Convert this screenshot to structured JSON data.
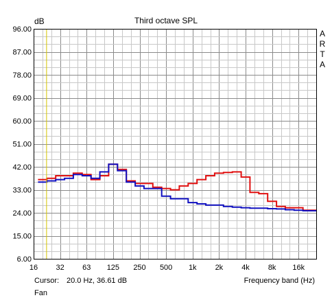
{
  "chart_data": {
    "type": "line",
    "title": "Third octave SPL",
    "ylabel": "dB",
    "xlabel": "Frequency band (Hz)",
    "ylim": [
      6,
      96
    ],
    "y_ticks": [
      "96.00",
      "87.00",
      "78.00",
      "69.00",
      "60.00",
      "51.00",
      "42.00",
      "33.00",
      "24.00",
      "15.00",
      "6.00"
    ],
    "x_ticks": [
      "16",
      "32",
      "63",
      "125",
      "250",
      "500",
      "1k",
      "2k",
      "4k",
      "8k",
      "16k"
    ],
    "bands_hz": [
      16,
      20,
      25,
      31.5,
      40,
      50,
      63,
      80,
      100,
      125,
      160,
      200,
      250,
      315,
      400,
      500,
      630,
      800,
      1000,
      1250,
      1600,
      2000,
      2500,
      3150,
      4000,
      5000,
      6300,
      8000,
      10000,
      12500,
      16000,
      20000
    ],
    "grid": true,
    "series": [
      {
        "color": "#e01010",
        "values": [
          37.0,
          37.5,
          38.5,
          38.5,
          39.5,
          39.0,
          37.0,
          38.5,
          43.0,
          41.0,
          36.5,
          35.5,
          35.5,
          34.0,
          33.5,
          33.0,
          34.5,
          35.5,
          37.0,
          38.5,
          39.5,
          39.8,
          40.0,
          38.0,
          32.0,
          31.5,
          28.5,
          26.5,
          26.0,
          26.0,
          25.0,
          25.0
        ]
      },
      {
        "color": "#1010c0",
        "values": [
          36.0,
          36.5,
          37.0,
          37.5,
          39.0,
          38.5,
          37.5,
          40.0,
          43.0,
          40.5,
          36.0,
          34.5,
          33.5,
          33.5,
          30.5,
          29.5,
          29.5,
          28.0,
          27.5,
          27.0,
          27.0,
          26.5,
          26.2,
          26.0,
          25.8,
          25.8,
          25.6,
          25.5,
          25.2,
          25.0,
          24.8,
          24.8
        ]
      }
    ],
    "cursor": {
      "x_hz": 20.0,
      "color": "#d4c400"
    }
  },
  "footer": {
    "cursor_label": "Cursor:",
    "cursor_value": "20.0 Hz, 36.61 dB",
    "series_name": "Fan"
  },
  "brand": "ARTA"
}
